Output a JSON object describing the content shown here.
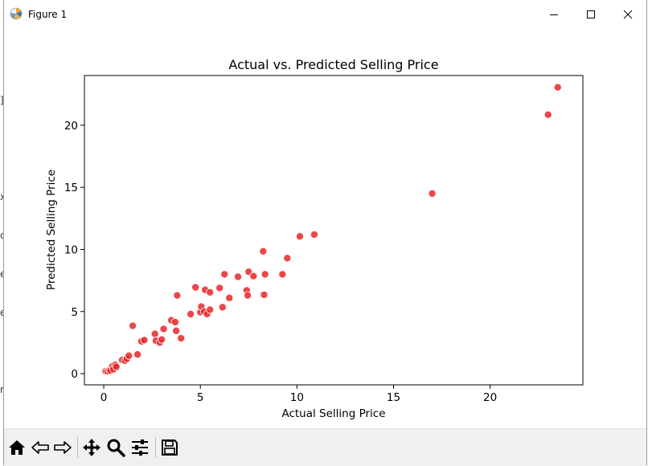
{
  "window": {
    "title": "Figure 1",
    "controls": [
      "minimize",
      "maximize",
      "close"
    ]
  },
  "toolbar": {
    "tools": [
      "home-icon",
      "back-arrow-icon",
      "forward-arrow-icon",
      "pan-icon",
      "zoom-icon",
      "configure-subplots-icon",
      "save-icon"
    ]
  },
  "background_window_fragments": [
    "]",
    "x",
    "c",
    "e",
    "e",
    "r"
  ],
  "chart_data": {
    "type": "scatter",
    "title": "Actual vs. Predicted Selling Price",
    "xlabel": "Actual Selling Price",
    "ylabel": "Predicted Selling Price",
    "xlim": [
      -1.0,
      24.8
    ],
    "ylim": [
      -0.9,
      24.0
    ],
    "xticks": [
      0,
      5,
      10,
      15,
      20
    ],
    "yticks": [
      0,
      5,
      10,
      15,
      20
    ],
    "grid": false,
    "legend": "none",
    "marker_color": "#e8272a",
    "marker_edge": "#ffffff",
    "points": [
      [
        0.1,
        0.2
      ],
      [
        0.2,
        0.2
      ],
      [
        0.3,
        0.3
      ],
      [
        0.35,
        0.25
      ],
      [
        0.45,
        0.6
      ],
      [
        0.5,
        0.35
      ],
      [
        0.6,
        0.7
      ],
      [
        0.65,
        0.55
      ],
      [
        0.95,
        1.1
      ],
      [
        1.1,
        1.05
      ],
      [
        1.2,
        1.2
      ],
      [
        1.3,
        1.45
      ],
      [
        1.5,
        3.85
      ],
      [
        1.75,
        1.55
      ],
      [
        1.95,
        2.6
      ],
      [
        2.1,
        2.7
      ],
      [
        2.65,
        3.2
      ],
      [
        2.7,
        2.65
      ],
      [
        2.9,
        2.5
      ],
      [
        3.0,
        2.75
      ],
      [
        3.1,
        3.6
      ],
      [
        3.5,
        4.3
      ],
      [
        3.7,
        4.15
      ],
      [
        3.75,
        3.45
      ],
      [
        3.8,
        6.3
      ],
      [
        4.0,
        2.85
      ],
      [
        4.5,
        4.8
      ],
      [
        4.75,
        6.95
      ],
      [
        5.0,
        4.95
      ],
      [
        5.05,
        5.4
      ],
      [
        5.2,
        5.0
      ],
      [
        5.25,
        6.75
      ],
      [
        5.35,
        4.8
      ],
      [
        5.5,
        6.55
      ],
      [
        5.5,
        5.15
      ],
      [
        6.0,
        6.9
      ],
      [
        6.15,
        5.35
      ],
      [
        6.25,
        8.0
      ],
      [
        6.5,
        6.1
      ],
      [
        6.95,
        7.8
      ],
      [
        7.4,
        6.7
      ],
      [
        7.45,
        6.3
      ],
      [
        7.5,
        8.2
      ],
      [
        7.75,
        7.85
      ],
      [
        8.25,
        9.85
      ],
      [
        8.3,
        6.35
      ],
      [
        8.35,
        8.0
      ],
      [
        9.25,
        8.0
      ],
      [
        9.5,
        9.3
      ],
      [
        10.15,
        11.05
      ],
      [
        10.9,
        11.2
      ],
      [
        17.0,
        14.5
      ],
      [
        23.0,
        20.85
      ],
      [
        23.5,
        23.05
      ]
    ]
  }
}
